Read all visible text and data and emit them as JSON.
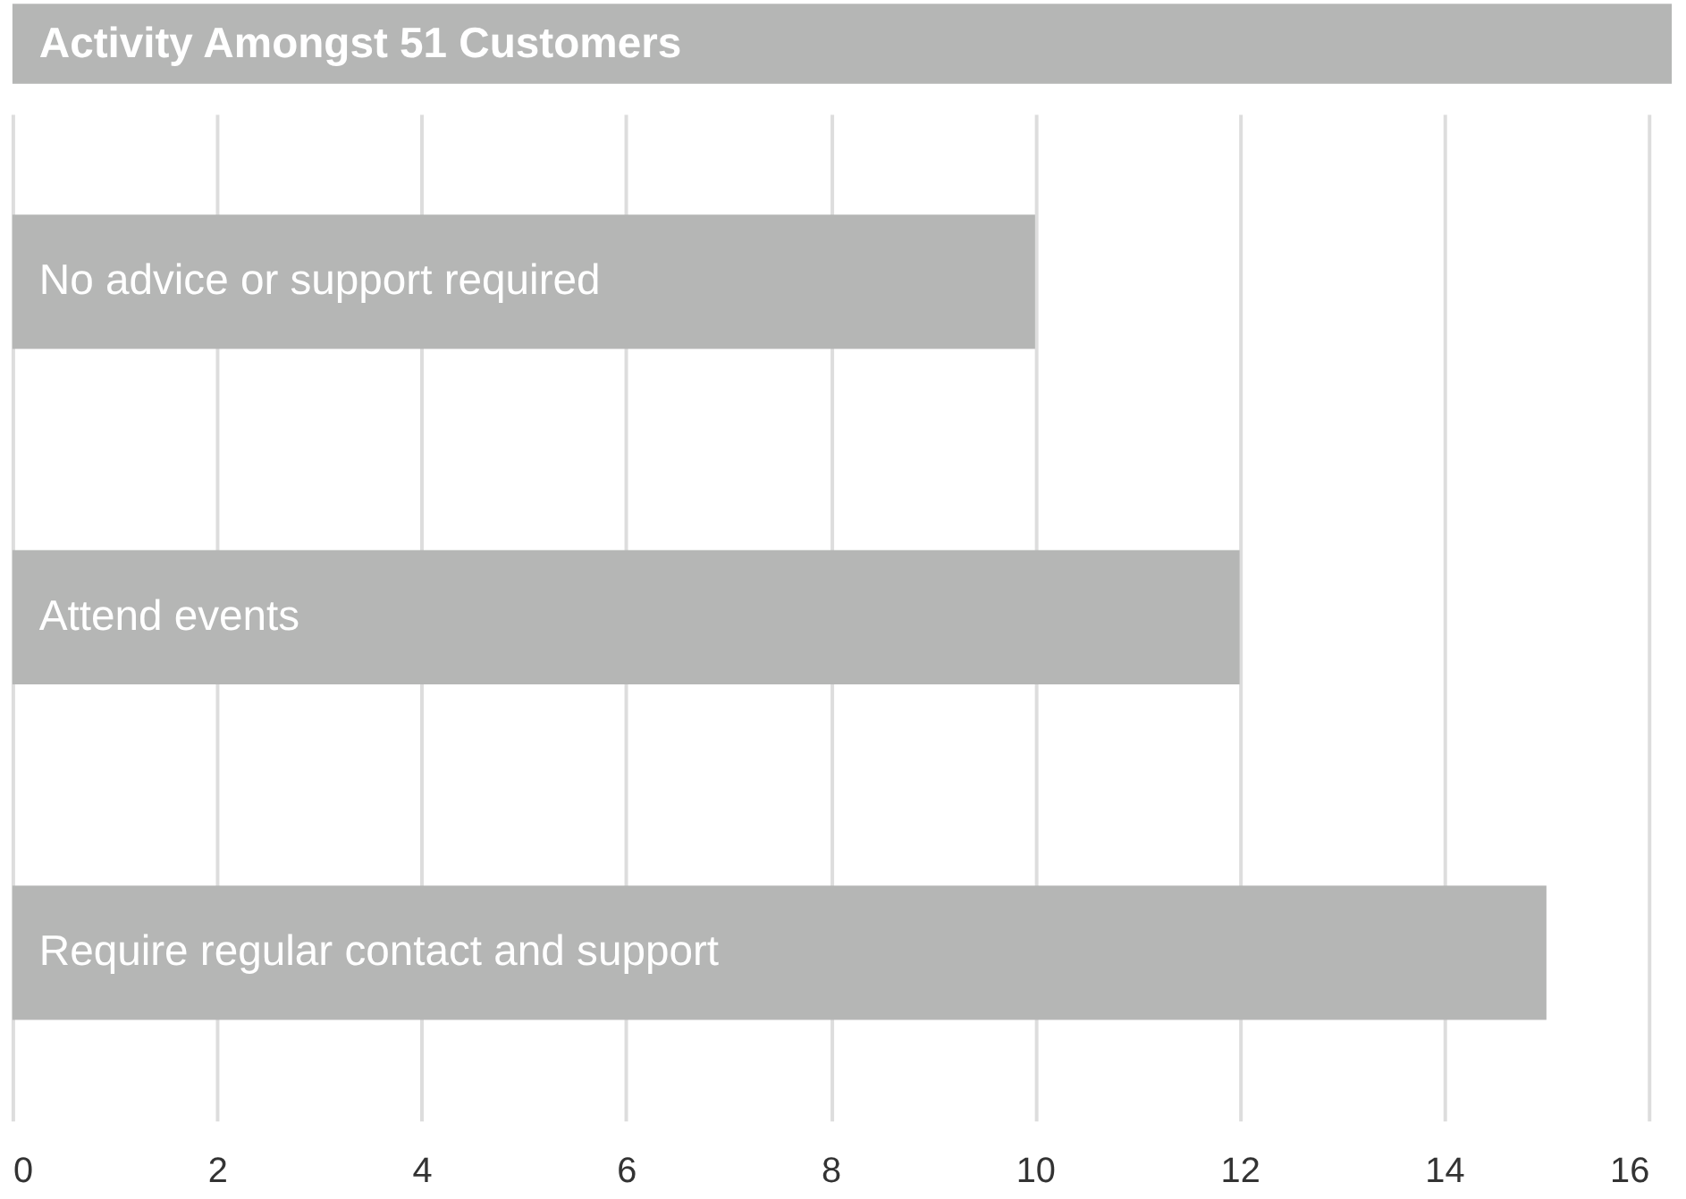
{
  "chart_data": {
    "type": "bar",
    "orientation": "horizontal",
    "title": "Activity Amongst 51 Customers",
    "categories": [
      "No advice or support required",
      "Attend events",
      "Require regular contact and support"
    ],
    "values": [
      10,
      12,
      15
    ],
    "color": "#b5b6b5",
    "xlim": [
      0,
      16
    ],
    "xticks": [
      0,
      2,
      4,
      6,
      8,
      10,
      12,
      14,
      16
    ],
    "grid": "x"
  }
}
